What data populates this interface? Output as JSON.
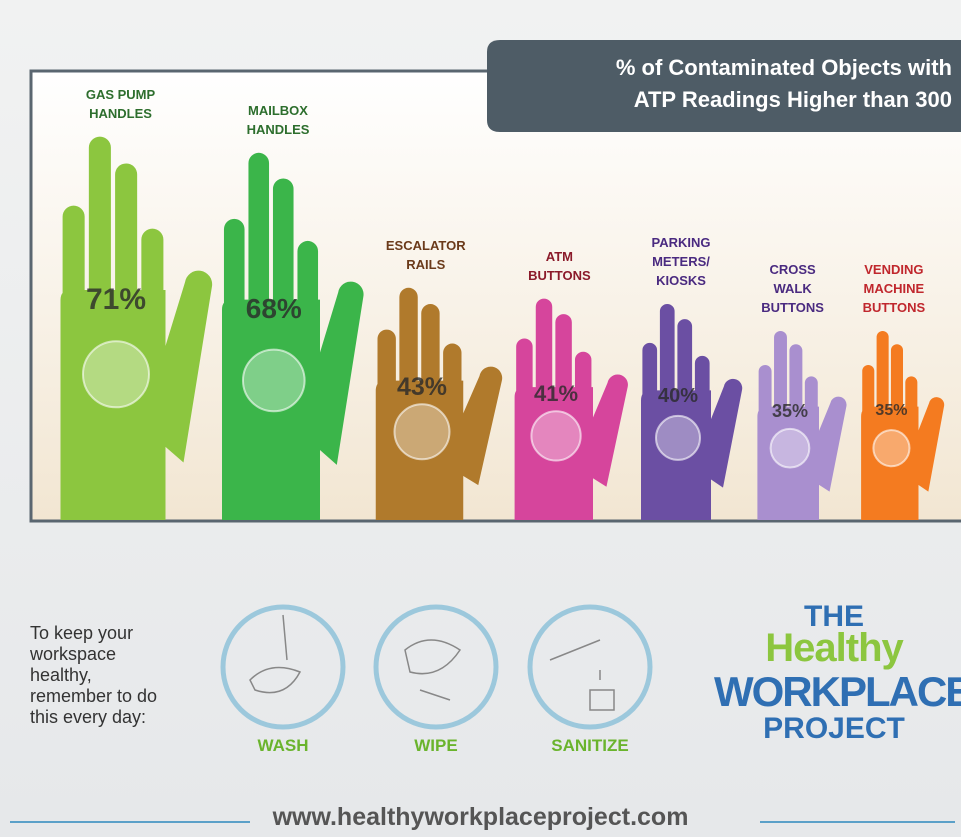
{
  "chart_data": {
    "type": "bar",
    "title": "% of Contaminated Objects with\nATP Readings Higher than 300",
    "categories": [
      "GAS PUMP\nHANDLES",
      "MAILBOX\nHANDLES",
      "ESCALATOR\nRAILS",
      "ATM\nBUTTONS",
      "PARKING\nMETERS/\nKIOSKS",
      "CROSS\nWALK\nBUTTONS",
      "VENDING\nMACHINE\nBUTTONS"
    ],
    "values": [
      71,
      68,
      43,
      41,
      40,
      35,
      35
    ],
    "value_labels": [
      "71%",
      "68%",
      "43%",
      "41%",
      "40%",
      "35%",
      "35%"
    ],
    "colors": [
      "#8cc63f",
      "#3bb54a",
      "#b07a2c",
      "#d6459c",
      "#6b4fa3",
      "#a98fcf",
      "#f47b20"
    ],
    "label_colors": [
      "#2d6e2d",
      "#2d6e2d",
      "#6b3a1a",
      "#8b1a2a",
      "#4a2a80",
      "#4a2a80",
      "#c0272d"
    ]
  },
  "reminder": {
    "text": "To keep your\nworkspace\nhealthy,\nremember to do\nthis every day:",
    "actions": [
      "WASH",
      "WIPE",
      "SANITIZE"
    ]
  },
  "logo": {
    "line1": "THE",
    "line2": "Healthy",
    "line3": "WORKPLACE",
    "line4": "PROJECT"
  },
  "url": "www.healthyworkplaceproject.com"
}
